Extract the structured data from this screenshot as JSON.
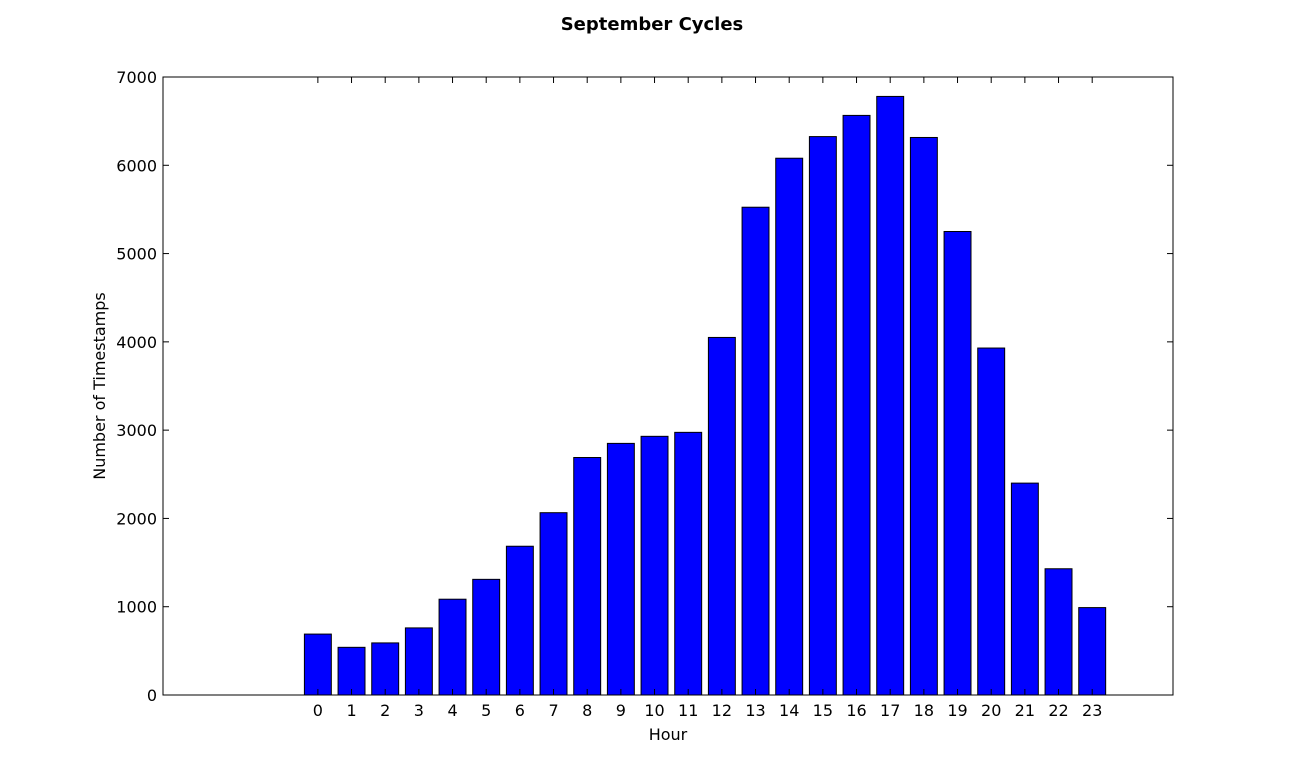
{
  "chart_data": {
    "type": "bar",
    "title": "September Cycles",
    "xlabel": "Hour",
    "ylabel": "Number of Timestamps",
    "categories": [
      "0",
      "1",
      "2",
      "3",
      "4",
      "5",
      "6",
      "7",
      "8",
      "9",
      "10",
      "11",
      "12",
      "13",
      "14",
      "15",
      "16",
      "17",
      "18",
      "19",
      "20",
      "21",
      "22",
      "23"
    ],
    "values": [
      690,
      540,
      590,
      760,
      1085,
      1310,
      1685,
      2065,
      2690,
      2850,
      2930,
      2975,
      4050,
      5525,
      6080,
      6325,
      6565,
      6780,
      6315,
      5250,
      3930,
      2400,
      1430,
      990
    ],
    "ylim": [
      0,
      7000
    ],
    "yticks": [
      "0",
      "1000",
      "2000",
      "3000",
      "4000",
      "5000",
      "6000",
      "7000"
    ],
    "xlim": [
      -4.6,
      25.4
    ],
    "bar_width": 0.8,
    "bar_color": "#0000ff",
    "grid": false
  }
}
